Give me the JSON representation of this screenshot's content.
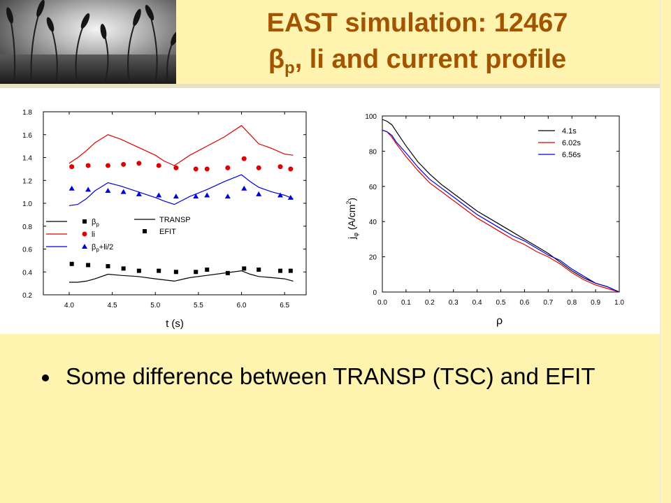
{
  "slide": {
    "title_line1": "EAST simulation: 12467",
    "title_line2_symbol": "β",
    "title_line2_sub": "p",
    "title_line2_rest": ", li and current profile",
    "bullet": "Some difference between TRANSP (TSC) and EFIT",
    "colors": {
      "background": "#fff3b0",
      "title": "#a35400"
    }
  },
  "chart_data": [
    {
      "type": "scatter",
      "title": "",
      "xlabel": "t (s)",
      "ylabel": "",
      "xlim": [
        3.7,
        6.75
      ],
      "ylim": [
        0.2,
        1.8
      ],
      "x_ticks": [
        4.0,
        4.5,
        5.0,
        5.5,
        6.0,
        6.5
      ],
      "x_tick_labels": [
        "4.0",
        "4.5",
        "5.0",
        "5.5",
        "6.0",
        "6.5"
      ],
      "y_ticks": [
        0.2,
        0.4,
        0.6,
        0.8,
        1.0,
        1.2,
        1.4,
        1.6,
        1.8
      ],
      "y_tick_labels": [
        "0.2",
        "0.4",
        "0.6",
        "0.8",
        "1.0",
        "1.2",
        "1.4",
        "1.6",
        "1.8"
      ],
      "legend": {
        "placement": "lower-left",
        "items": [
          {
            "label_main": "β",
            "label_sub": "p",
            "label_rest": "",
            "marker": "square",
            "color": "#000000"
          },
          {
            "label_main": "li",
            "label_sub": "",
            "label_rest": "",
            "marker": "circle",
            "color": "#e00000"
          },
          {
            "label_main": "β",
            "label_sub": "p",
            "label_rest": "+li/2",
            "marker": "triangle",
            "color": "#0000e0"
          }
        ],
        "style_items": [
          {
            "label": "TRANSP",
            "style": "line"
          },
          {
            "label": "EFIT",
            "style": "marker"
          }
        ]
      },
      "series": [
        {
          "name": "TRANSP",
          "quantity": "bp",
          "style": "line",
          "color": "#000000",
          "x": [
            4.0,
            4.1,
            4.2,
            4.3,
            4.45,
            4.6,
            4.8,
            5.0,
            5.22,
            5.4,
            5.6,
            5.8,
            6.0,
            6.1,
            6.2,
            6.35,
            6.5,
            6.6
          ],
          "y": [
            0.31,
            0.31,
            0.32,
            0.34,
            0.38,
            0.37,
            0.36,
            0.34,
            0.32,
            0.35,
            0.37,
            0.39,
            0.41,
            0.38,
            0.36,
            0.35,
            0.34,
            0.32
          ]
        },
        {
          "name": "TRANSP",
          "quantity": "li",
          "style": "line",
          "color": "#e00000",
          "x": [
            4.0,
            4.1,
            4.2,
            4.3,
            4.45,
            4.6,
            4.8,
            5.0,
            5.1,
            5.22,
            5.4,
            5.6,
            5.8,
            6.0,
            6.1,
            6.2,
            6.35,
            6.5,
            6.6
          ],
          "y": [
            1.35,
            1.4,
            1.46,
            1.53,
            1.6,
            1.56,
            1.49,
            1.42,
            1.37,
            1.33,
            1.42,
            1.5,
            1.58,
            1.68,
            1.6,
            1.52,
            1.48,
            1.43,
            1.42
          ]
        },
        {
          "name": "TRANSP",
          "quantity": "bp+li/2",
          "style": "line",
          "color": "#0000e0",
          "x": [
            4.0,
            4.1,
            4.2,
            4.3,
            4.45,
            4.6,
            4.8,
            5.0,
            5.1,
            5.22,
            5.4,
            5.6,
            5.8,
            6.0,
            6.1,
            6.2,
            6.35,
            6.5,
            6.6
          ],
          "y": [
            0.98,
            0.99,
            1.04,
            1.11,
            1.18,
            1.15,
            1.1,
            1.05,
            1.02,
            0.99,
            1.06,
            1.12,
            1.19,
            1.25,
            1.19,
            1.14,
            1.1,
            1.07,
            1.04
          ]
        },
        {
          "name": "EFIT",
          "quantity": "bp",
          "style": "marker",
          "marker": "square",
          "color": "#000000",
          "x": [
            4.03,
            4.22,
            4.45,
            4.63,
            4.81,
            5.04,
            5.24,
            5.47,
            5.6,
            5.84,
            6.03,
            6.2,
            6.45,
            6.57
          ],
          "y": [
            0.47,
            0.46,
            0.45,
            0.43,
            0.41,
            0.41,
            0.4,
            0.4,
            0.42,
            0.39,
            0.43,
            0.42,
            0.41,
            0.41
          ]
        },
        {
          "name": "EFIT",
          "quantity": "li",
          "style": "marker",
          "marker": "circle",
          "color": "#e00000",
          "x": [
            4.03,
            4.22,
            4.45,
            4.63,
            4.81,
            5.04,
            5.24,
            5.47,
            5.6,
            5.84,
            6.03,
            6.2,
            6.45,
            6.57
          ],
          "y": [
            1.32,
            1.33,
            1.33,
            1.34,
            1.35,
            1.33,
            1.31,
            1.3,
            1.3,
            1.31,
            1.39,
            1.31,
            1.32,
            1.3
          ]
        },
        {
          "name": "EFIT",
          "quantity": "bp+li/2",
          "style": "marker",
          "marker": "triangle",
          "color": "#0000e0",
          "x": [
            4.03,
            4.22,
            4.45,
            4.63,
            4.81,
            5.04,
            5.24,
            5.47,
            5.6,
            5.84,
            6.03,
            6.2,
            6.45,
            6.57
          ],
          "y": [
            1.13,
            1.12,
            1.11,
            1.1,
            1.08,
            1.07,
            1.06,
            1.06,
            1.07,
            1.06,
            1.13,
            1.08,
            1.07,
            1.05
          ]
        }
      ]
    },
    {
      "type": "line",
      "title": "",
      "xlabel": "ρ",
      "ylabel_main": "j",
      "ylabel_sub": "φ",
      "ylabel_rest": " (A/cm",
      "ylabel_sup": "2",
      "ylabel_end": ")",
      "xlim": [
        0.0,
        1.0
      ],
      "ylim": [
        0,
        100
      ],
      "x_ticks": [
        0.0,
        0.1,
        0.2,
        0.3,
        0.4,
        0.5,
        0.6,
        0.7,
        0.8,
        0.9,
        1.0
      ],
      "x_tick_labels": [
        "0.0",
        "0.1",
        "0.2",
        "0.3",
        "0.4",
        "0.5",
        "0.6",
        "0.7",
        "0.8",
        "0.9",
        "1.0"
      ],
      "y_ticks": [
        0,
        20,
        40,
        60,
        80,
        100
      ],
      "y_tick_labels": [
        "0",
        "20",
        "40",
        "60",
        "80",
        "100"
      ],
      "legend": {
        "placement": "top-right"
      },
      "series": [
        {
          "name": "4.1s",
          "color": "#000000",
          "x": [
            0.0,
            0.02,
            0.04,
            0.06,
            0.1,
            0.15,
            0.2,
            0.25,
            0.3,
            0.35,
            0.4,
            0.45,
            0.5,
            0.55,
            0.6,
            0.65,
            0.7,
            0.75,
            0.8,
            0.85,
            0.9,
            0.95,
            1.0
          ],
          "y": [
            98,
            97,
            95,
            91,
            83,
            74,
            67,
            61,
            56,
            51,
            46,
            42,
            38,
            34,
            30,
            26,
            22,
            17,
            12,
            8,
            5,
            3,
            0
          ]
        },
        {
          "name": "6.02s",
          "color": "#e00000",
          "x": [
            0.0,
            0.02,
            0.04,
            0.06,
            0.1,
            0.15,
            0.2,
            0.25,
            0.3,
            0.35,
            0.4,
            0.45,
            0.5,
            0.55,
            0.6,
            0.65,
            0.7,
            0.75,
            0.8,
            0.85,
            0.9,
            0.95,
            1.0
          ],
          "y": [
            92,
            91,
            88,
            84,
            77,
            69,
            62,
            57,
            52,
            47,
            42,
            38,
            34,
            30,
            27,
            23,
            20,
            16,
            11,
            7,
            4,
            2,
            0
          ]
        },
        {
          "name": "6.56s",
          "color": "#0000e0",
          "x": [
            0.0,
            0.02,
            0.04,
            0.06,
            0.1,
            0.15,
            0.2,
            0.25,
            0.3,
            0.35,
            0.4,
            0.45,
            0.5,
            0.55,
            0.6,
            0.65,
            0.7,
            0.75,
            0.8,
            0.85,
            0.9,
            0.95,
            1.0
          ],
          "y": [
            92,
            91,
            89,
            85,
            79,
            71,
            64,
            59,
            54,
            49,
            44,
            40,
            36,
            32,
            29,
            25,
            21,
            18,
            13,
            9,
            5,
            3,
            0
          ]
        }
      ]
    }
  ]
}
